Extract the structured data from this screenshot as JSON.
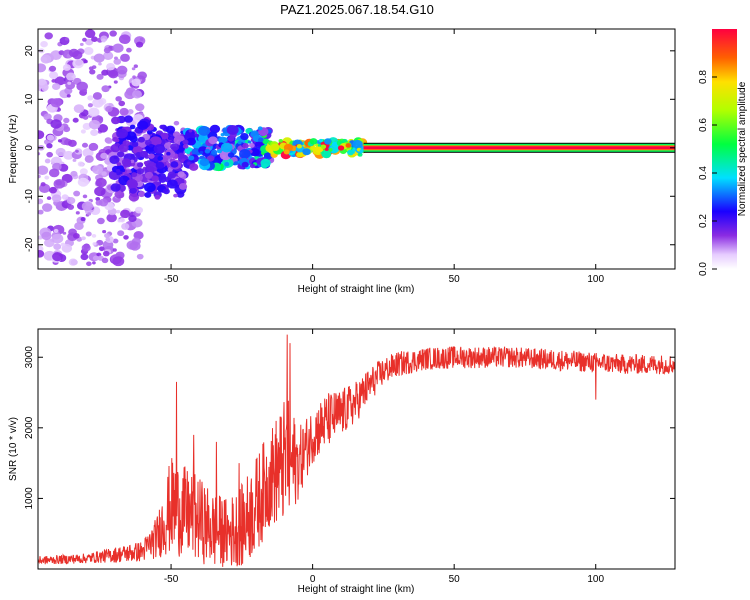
{
  "figure": {
    "title": "PAZ1.2025.067.18.54.G10"
  },
  "chart_data": [
    {
      "type": "heatmap",
      "title": "PAZ1.2025.067.18.54.G10",
      "xlabel": "Height of straight line (km)",
      "ylabel": "Frequency (Hz)",
      "xlim": [
        -97,
        128
      ],
      "ylim": [
        -25,
        24.5
      ],
      "x_ticks": [
        -50,
        0,
        50,
        100
      ],
      "y_ticks": [
        -20,
        -10,
        0,
        10,
        20
      ],
      "colorbar": {
        "label": "Normalized spectral amplitude",
        "range": [
          0,
          1
        ],
        "ticks": [
          0.0,
          0.2,
          0.4,
          0.6,
          0.8
        ],
        "colors": [
          "#ffffff",
          "#e6ccff",
          "#8a2be2",
          "#1a00ff",
          "#00e0ff",
          "#00ff40",
          "#b0ff00",
          "#ffe000",
          "#ff6000",
          "#ff0040"
        ]
      },
      "tone_line": {
        "x_start": 18,
        "x_end": 128,
        "freq": 0,
        "amplitude": 1.0
      },
      "regions": [
        {
          "x_range": [
            -97,
            -60
          ],
          "freq_spread": 24,
          "amplitude": [
            0.05,
            0.15
          ],
          "description_label": ""
        },
        {
          "x_range": [
            -70,
            -45
          ],
          "freq_spread": 8,
          "amplitude": [
            0.1,
            0.25
          ]
        },
        {
          "x_range": [
            -45,
            -15
          ],
          "freq_spread": 4,
          "amplitude": [
            0.1,
            0.35
          ]
        },
        {
          "x_range": [
            -15,
            18
          ],
          "freq_spread": 1.5,
          "amplitude": [
            0.3,
            0.9
          ]
        }
      ],
      "grid": false,
      "legend": "none"
    },
    {
      "type": "line",
      "xlabel": "Height of straight line (km)",
      "ylabel": "SNR (10 * v/v)",
      "xlim": [
        -97,
        128
      ],
      "ylim": [
        0,
        3400
      ],
      "x_ticks": [
        -50,
        0,
        50,
        100
      ],
      "y_ticks": [
        1000,
        2000,
        3000
      ],
      "series": [
        {
          "color": "#e8302a",
          "envelope": [
            {
              "x": -97,
              "mean": 120,
              "noise": 60
            },
            {
              "x": -80,
              "mean": 150,
              "noise": 70
            },
            {
              "x": -60,
              "mean": 250,
              "noise": 150
            },
            {
              "x": -55,
              "mean": 450,
              "noise": 300
            },
            {
              "x": -50,
              "mean": 900,
              "noise": 700
            },
            {
              "x": -45,
              "mean": 800,
              "noise": 650
            },
            {
              "x": -40,
              "mean": 700,
              "noise": 600
            },
            {
              "x": -35,
              "mean": 550,
              "noise": 550
            },
            {
              "x": -30,
              "mean": 500,
              "noise": 500
            },
            {
              "x": -25,
              "mean": 600,
              "noise": 600
            },
            {
              "x": -20,
              "mean": 900,
              "noise": 700
            },
            {
              "x": -15,
              "mean": 1300,
              "noise": 700
            },
            {
              "x": -10,
              "mean": 1500,
              "noise": 900
            },
            {
              "x": -8,
              "mean": 1500,
              "noise": 900
            },
            {
              "x": -5,
              "mean": 1500,
              "noise": 500
            },
            {
              "x": 0,
              "mean": 1900,
              "noise": 400
            },
            {
              "x": 5,
              "mean": 2100,
              "noise": 400
            },
            {
              "x": 10,
              "mean": 2200,
              "noise": 350
            },
            {
              "x": 15,
              "mean": 2350,
              "noise": 300
            },
            {
              "x": 20,
              "mean": 2600,
              "noise": 250
            },
            {
              "x": 25,
              "mean": 2800,
              "noise": 200
            },
            {
              "x": 30,
              "mean": 2900,
              "noise": 180
            },
            {
              "x": 40,
              "mean": 2980,
              "noise": 160
            },
            {
              "x": 50,
              "mean": 3000,
              "noise": 160
            },
            {
              "x": 70,
              "mean": 3000,
              "noise": 150
            },
            {
              "x": 90,
              "mean": 2950,
              "noise": 150
            },
            {
              "x": 110,
              "mean": 2900,
              "noise": 140
            },
            {
              "x": 128,
              "mean": 2900,
              "noise": 140
            }
          ],
          "spikes": [
            {
              "x": -48,
              "y": 2650
            },
            {
              "x": -42,
              "y": 1900
            },
            {
              "x": -34,
              "y": 1800
            },
            {
              "x": -26,
              "y": 1500
            },
            {
              "x": -9,
              "y": 3320
            },
            {
              "x": -8,
              "y": 3200
            },
            {
              "x": 100,
              "y": 2400
            }
          ]
        }
      ],
      "grid": false,
      "legend": "none"
    }
  ]
}
